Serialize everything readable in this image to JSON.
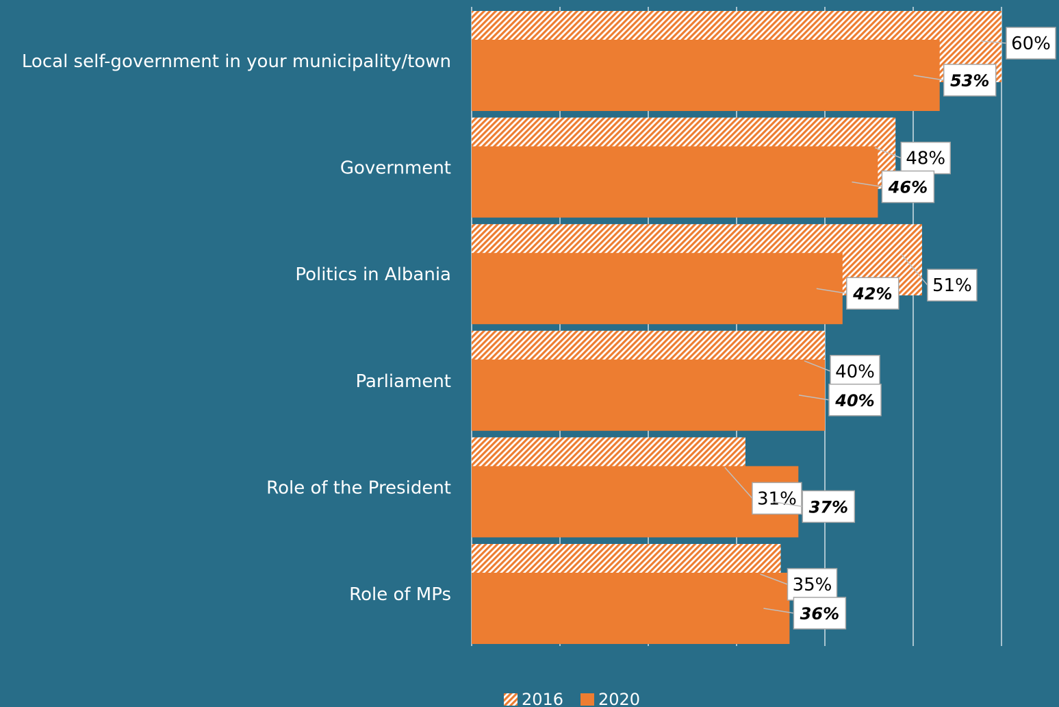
{
  "colors": {
    "background": "#286d88",
    "bar_2020": "#ed7d31",
    "bar_2016_hatch": "#ed7d31",
    "hatch_bg": "#ffffff",
    "gridline": "#ffffff",
    "label_text": "#ffffff",
    "callout_text": "#000000"
  },
  "chart_data": {
    "type": "bar",
    "orientation": "horizontal",
    "title": "",
    "xlabel": "",
    "ylabel": "",
    "xlim": [
      0,
      60
    ],
    "grid": true,
    "legend": "bottom-center",
    "categories": [
      "Local self-government in your municipality/town",
      "Government",
      "Politics in Albania",
      "Parliament",
      "Role of the President",
      "Role of MPs"
    ],
    "series": [
      {
        "name": "2016",
        "pattern": "hatched",
        "values": [
          60,
          48,
          51,
          40,
          31,
          35
        ],
        "labels": [
          "60%",
          "48%",
          "51%",
          "40%",
          "31%",
          "35%"
        ]
      },
      {
        "name": "2020",
        "pattern": "solid",
        "values": [
          53,
          46,
          42,
          40,
          37,
          36
        ],
        "labels": [
          "53%",
          "46%",
          "42%",
          "40%",
          "37%",
          "36%"
        ]
      }
    ]
  }
}
